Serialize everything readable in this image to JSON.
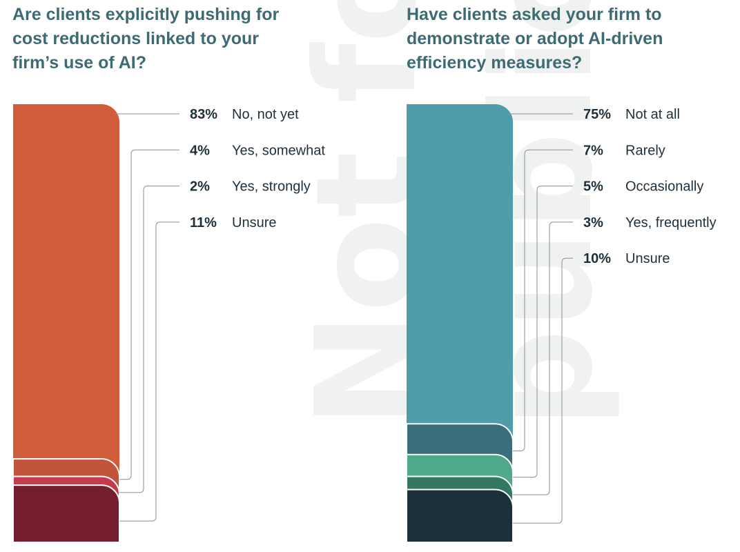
{
  "watermark": {
    "line1": "Not fo",
    "line2": "public"
  },
  "charts": [
    {
      "chart_data": {
        "type": "stacked-bar",
        "title": "Are clients explicitly pushing for cost reductions linked to your firm’s use of AI?",
        "unit": "%",
        "categories": [
          "No, not yet",
          "Yes, somewhat",
          "Yes, strongly",
          "Unsure"
        ],
        "values": [
          83,
          4,
          2,
          11
        ],
        "value_labels": [
          "83%",
          "4%",
          "2%",
          "11%"
        ],
        "colors": [
          "#d05c3a",
          "#c2543c",
          "#c33b4c",
          "#741e2f"
        ]
      }
    },
    {
      "chart_data": {
        "type": "stacked-bar",
        "title": "Have clients asked your firm to demonstrate or adopt AI-driven efficiency measures?",
        "unit": "%",
        "categories": [
          "Not at all",
          "Rarely",
          "Occasionally",
          "Yes, frequently",
          "Unsure"
        ],
        "values": [
          75,
          7,
          5,
          3,
          10
        ],
        "value_labels": [
          "75%",
          "7%",
          "5%",
          "3%",
          "10%"
        ],
        "colors": [
          "#4f9cab",
          "#3b6e7b",
          "#4fa98c",
          "#337861",
          "#1c303b"
        ]
      }
    }
  ]
}
